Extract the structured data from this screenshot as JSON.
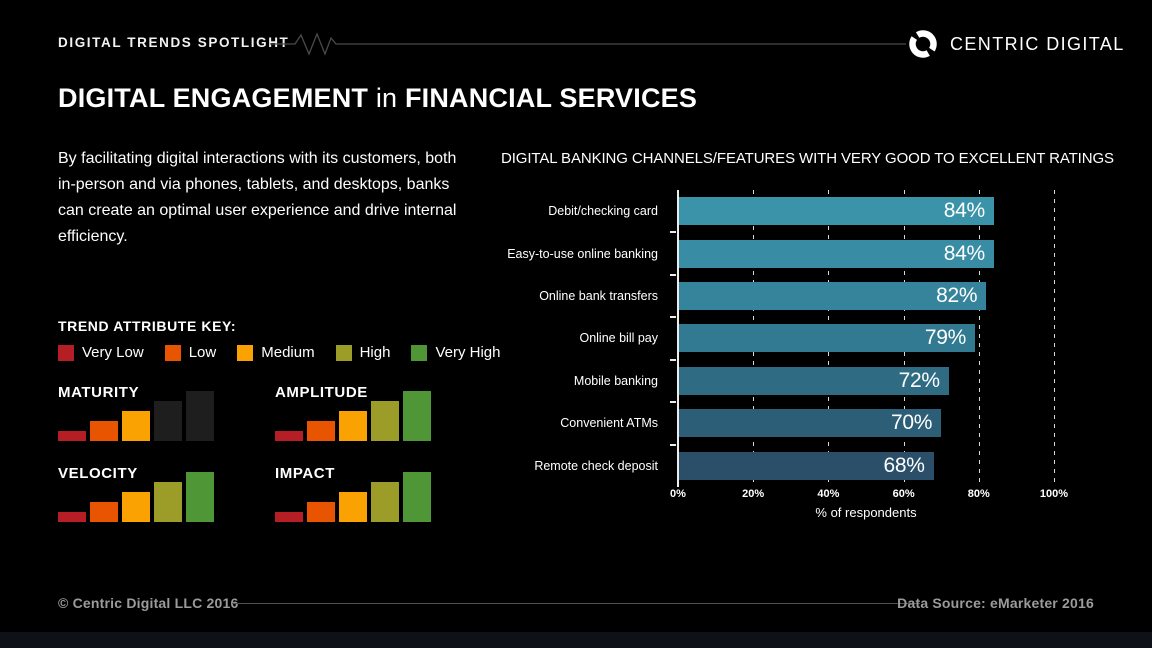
{
  "header": {
    "eyebrow": "DIGITAL TRENDS SPOTLIGHT",
    "brand": "CENTRIC DIGITAL"
  },
  "title": {
    "part1": "DIGITAL ENGAGEMENT",
    "part2": "in",
    "part3": "FINANCIAL SERVICES"
  },
  "intro": "By facilitating digital interactions with its customers, both in-person and via phones, tablets, and desktops, banks can create an optimal user experience and drive internal efficiency.",
  "trend_key": {
    "title": "TREND ATTRIBUTE KEY:",
    "levels": [
      {
        "label": "Very Low",
        "color": "#b41e24"
      },
      {
        "label": "Low",
        "color": "#e85400"
      },
      {
        "label": "Medium",
        "color": "#f9a201"
      },
      {
        "label": "High",
        "color": "#9c9c28"
      },
      {
        "label": "Very High",
        "color": "#4f9637"
      }
    ],
    "inactive_color": "#1e1e1e",
    "attributes": [
      {
        "name": "MATURITY",
        "level": 3
      },
      {
        "name": "AMPLITUDE",
        "level": 5
      },
      {
        "name": "VELOCITY",
        "level": 5
      },
      {
        "name": "IMPACT",
        "level": 5
      }
    ]
  },
  "chart_data": {
    "type": "bar",
    "orientation": "horizontal",
    "title": "DIGITAL BANKING CHANNELS/FEATURES WITH VERY GOOD TO EXCELLENT RATINGS",
    "categories": [
      "Debit/checking card",
      "Easy-to-use online banking",
      "Online bank transfers",
      "Online bill pay",
      "Mobile banking",
      "Convenient ATMs",
      "Remote check deposit"
    ],
    "values": [
      84,
      84,
      82,
      79,
      72,
      70,
      68
    ],
    "value_labels": [
      "84%",
      "84%",
      "82%",
      "79%",
      "72%",
      "70%",
      "68%"
    ],
    "bar_colors": [
      "#3b93aa",
      "#388ca3",
      "#35849b",
      "#327a91",
      "#2f6c84",
      "#2d5e77",
      "#2b4f68"
    ],
    "xlabel": "% of respondents",
    "x_ticks": [
      "0%",
      "20%",
      "40%",
      "60%",
      "80%",
      "100%"
    ],
    "xlim": [
      0,
      100
    ],
    "gridlines_percent": [
      20,
      40,
      60,
      80,
      100
    ],
    "grid": "dashed-vertical",
    "legend_position": "none"
  },
  "footer": {
    "copyright": "© Centric Digital LLC 2016",
    "source": "Data Source: eMarketer 2016"
  }
}
